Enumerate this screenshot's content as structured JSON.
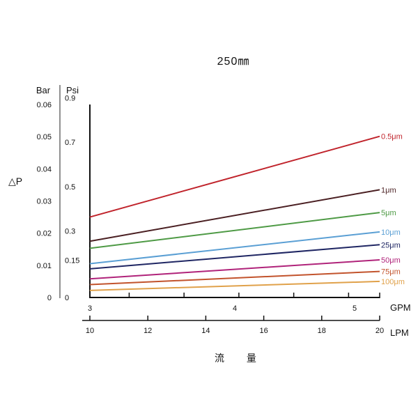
{
  "chart_data": {
    "type": "line",
    "title": "250㎜",
    "ylabel": "△P",
    "xlabel": "流 量",
    "y_axes": {
      "bar": {
        "label": "Bar",
        "ticks": [
          "0.06",
          "0.05",
          "0.04",
          "0.03",
          "0.02",
          "0.01",
          "0"
        ],
        "ylim": [
          0,
          0.06
        ]
      },
      "psi": {
        "label": "Psi",
        "ticks": [
          "0.9",
          "0.7",
          "0.5",
          "0.3",
          "0.15",
          "0"
        ]
      }
    },
    "x_axes": {
      "lpm": {
        "label": "LPM",
        "ticks": [
          "10",
          "12",
          "14",
          "16",
          "18",
          "20"
        ],
        "xlim": [
          10,
          20
        ]
      },
      "gpm": {
        "label": "GPM",
        "ticks": [
          "3",
          "4",
          "5"
        ]
      }
    },
    "grid": false,
    "series": [
      {
        "name": "0.5μm",
        "color": "#c0232b",
        "x": [
          10,
          20
        ],
        "values": [
          0.025,
          0.0501
        ]
      },
      {
        "name": "1μm",
        "color": "#4a1f22",
        "x": [
          10,
          20
        ],
        "values": [
          0.0175,
          0.0335
        ]
      },
      {
        "name": "5μm",
        "color": "#4e9a45",
        "x": [
          10,
          20
        ],
        "values": [
          0.0153,
          0.0264
        ]
      },
      {
        "name": "10μm",
        "color": "#5a9fd4",
        "x": [
          10,
          20
        ],
        "values": [
          0.0105,
          0.0204
        ]
      },
      {
        "name": "25μm",
        "color": "#1f2663",
        "x": [
          10,
          20
        ],
        "values": [
          0.0089,
          0.0164
        ]
      },
      {
        "name": "50μm",
        "color": "#b0237a",
        "x": [
          10,
          20
        ],
        "values": [
          0.0058,
          0.0117
        ]
      },
      {
        "name": "75μm",
        "color": "#c2532c",
        "x": [
          10,
          20
        ],
        "values": [
          0.004,
          0.0081
        ]
      },
      {
        "name": "100μm",
        "color": "#e0a14a",
        "x": [
          10,
          20
        ],
        "values": [
          0.0022,
          0.005
        ]
      }
    ]
  }
}
